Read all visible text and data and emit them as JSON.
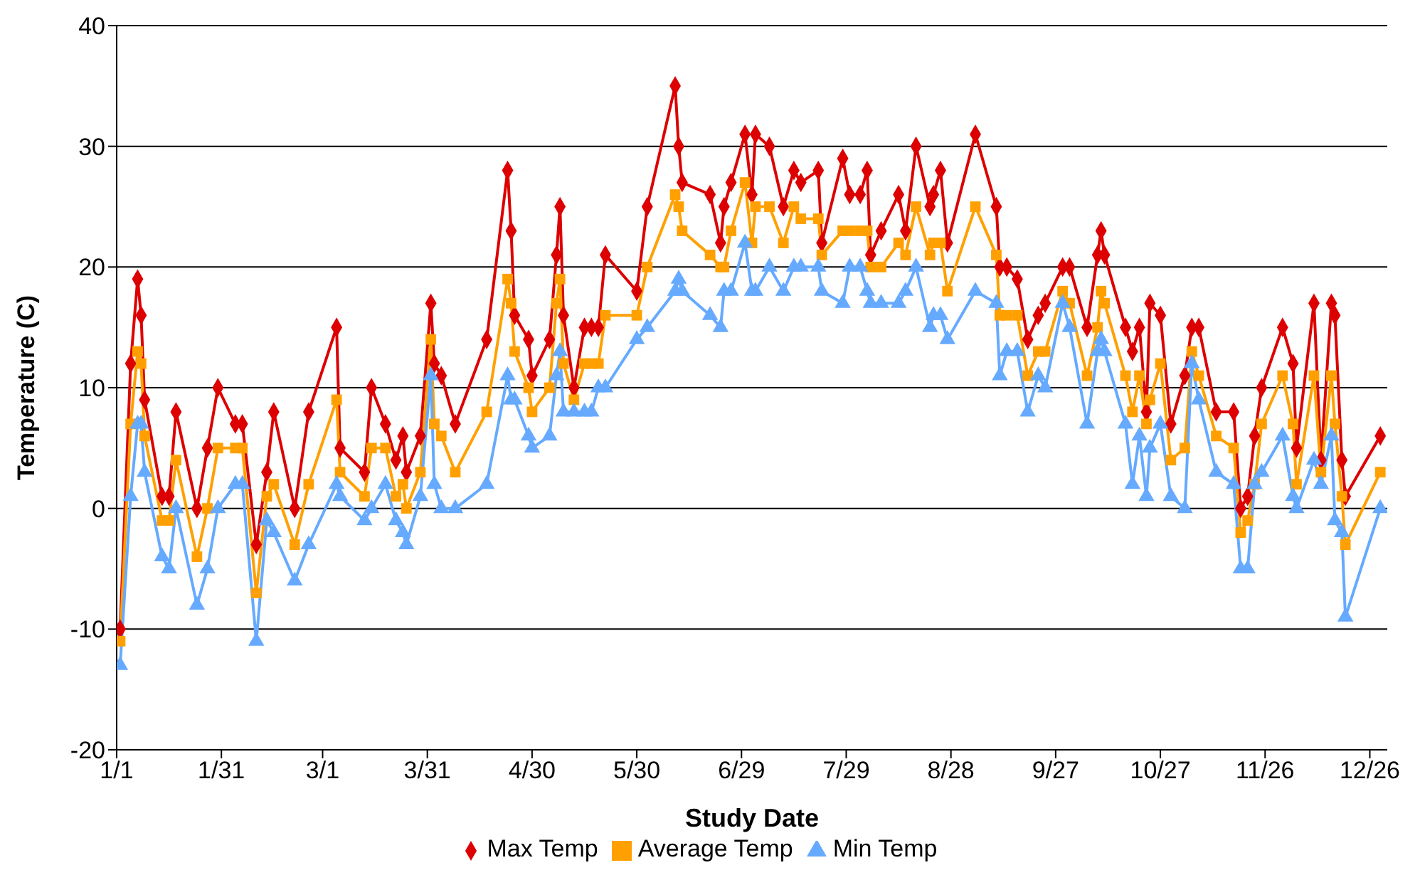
{
  "chart_data": {
    "type": "line",
    "xlabel": "Study Date",
    "ylabel": "Temperature (C)",
    "x": [
      "--01-02",
      "--01-05",
      "--01-07",
      "--01-08",
      "--01-09",
      "--01-14",
      "--01-16",
      "--01-18",
      "--01-24",
      "--01-27",
      "--01-30",
      "--02-04",
      "--02-06",
      "--02-10",
      "--02-13",
      "--02-15",
      "--02-21",
      "--02-25",
      "--03-05",
      "--03-06",
      "--03-13",
      "--03-15",
      "--03-19",
      "--03-22",
      "--03-24",
      "--03-25",
      "--03-29",
      "--04-01",
      "--04-02",
      "--04-04",
      "--04-08",
      "--04-17",
      "--04-23",
      "--04-24",
      "--04-25",
      "--04-29",
      "--04-30",
      "--05-05",
      "--05-07",
      "--05-08",
      "--05-09",
      "--05-12",
      "--05-15",
      "--05-17",
      "--05-19",
      "--05-21",
      "--05-30",
      "--06-02",
      "--06-10",
      "--06-11",
      "--06-12",
      "--06-20",
      "--06-23",
      "--06-24",
      "--06-26",
      "--06-30",
      "--07-02",
      "--07-03",
      "--07-07",
      "--07-11",
      "--07-14",
      "--07-16",
      "--07-21",
      "--07-22",
      "--07-28",
      "--07-30",
      "--08-02",
      "--08-04",
      "--08-05",
      "--08-08",
      "--08-13",
      "--08-15",
      "--08-18",
      "--08-22",
      "--08-23",
      "--08-25",
      "--08-27",
      "--09-04",
      "--09-10",
      "--09-11",
      "--09-13",
      "--09-16",
      "--09-19",
      "--09-22",
      "--09-24",
      "--09-29",
      "--10-01",
      "--10-06",
      "--10-09",
      "--10-10",
      "--10-11",
      "--10-17",
      "--10-19",
      "--10-21",
      "--10-23",
      "--10-24",
      "--10-27",
      "--10-30",
      "--11-03",
      "--11-05",
      "--11-07",
      "--11-12",
      "--11-17",
      "--11-19",
      "--11-21",
      "--11-23",
      "--11-25",
      "--12-01",
      "--12-04",
      "--12-05",
      "--12-10",
      "--12-12",
      "--12-15",
      "--12-16",
      "--12-18",
      "--12-19",
      "--12-29"
    ],
    "series": [
      {
        "name": "Max Temp",
        "color": "#dd0000",
        "marker": "diamond",
        "values": [
          -10,
          12,
          19,
          16,
          9,
          1,
          1,
          8,
          0,
          5,
          10,
          7,
          7,
          -3,
          3,
          8,
          0,
          8,
          15,
          5,
          3,
          10,
          7,
          4,
          6,
          3,
          6,
          17,
          12,
          11,
          7,
          14,
          28,
          23,
          16,
          14,
          11,
          14,
          21,
          25,
          16,
          10,
          15,
          15,
          15,
          21,
          18,
          25,
          35,
          30,
          27,
          26,
          22,
          25,
          27,
          31,
          26,
          31,
          30,
          25,
          28,
          27,
          28,
          22,
          29,
          26,
          26,
          28,
          21,
          23,
          26,
          23,
          30,
          25,
          26,
          28,
          22,
          31,
          25,
          20,
          20,
          19,
          14,
          16,
          17,
          20,
          20,
          15,
          21,
          23,
          21,
          15,
          13,
          15,
          8,
          17,
          16,
          7,
          11,
          15,
          15,
          8,
          8,
          0,
          1,
          6,
          10,
          15,
          12,
          5,
          17,
          4,
          17,
          16,
          4,
          1,
          6
        ]
      },
      {
        "name": "Average Temp",
        "color": "#ffa000",
        "marker": "square",
        "values": [
          -11,
          7,
          13,
          12,
          6,
          -1,
          -1,
          4,
          -4,
          0,
          5,
          5,
          5,
          -7,
          1,
          2,
          -3,
          2,
          9,
          3,
          1,
          5,
          5,
          1,
          2,
          0,
          3,
          14,
          7,
          6,
          3,
          8,
          19,
          17,
          13,
          10,
          8,
          10,
          17,
          19,
          12,
          9,
          12,
          12,
          12,
          16,
          16,
          20,
          26,
          25,
          23,
          21,
          20,
          20,
          23,
          27,
          22,
          25,
          25,
          22,
          25,
          24,
          24,
          21,
          23,
          23,
          23,
          23,
          20,
          20,
          22,
          21,
          25,
          21,
          22,
          22,
          18,
          25,
          21,
          16,
          16,
          16,
          11,
          13,
          13,
          18,
          17,
          11,
          15,
          18,
          17,
          11,
          8,
          11,
          7,
          9,
          12,
          4,
          5,
          13,
          11,
          6,
          5,
          -2,
          -1,
          2,
          7,
          11,
          7,
          2,
          11,
          3,
          11,
          7,
          1,
          -3,
          3
        ]
      },
      {
        "name": "Min Temp",
        "color": "#66aaff",
        "marker": "triangle",
        "values": [
          -13,
          1,
          7,
          7,
          3,
          -4,
          -5,
          0,
          -8,
          -5,
          0,
          2,
          2,
          -11,
          -1,
          -2,
          -6,
          -3,
          2,
          1,
          -1,
          0,
          2,
          -1,
          -2,
          -3,
          1,
          11,
          2,
          0,
          0,
          2,
          11,
          9,
          9,
          6,
          5,
          6,
          11,
          13,
          8,
          8,
          8,
          8,
          10,
          10,
          14,
          15,
          18,
          19,
          18,
          16,
          15,
          18,
          18,
          22,
          18,
          18,
          20,
          18,
          20,
          20,
          20,
          18,
          17,
          20,
          20,
          18,
          17,
          17,
          17,
          18,
          20,
          15,
          16,
          16,
          14,
          18,
          17,
          11,
          13,
          13,
          8,
          11,
          10,
          17,
          15,
          7,
          13,
          14,
          13,
          7,
          2,
          6,
          1,
          5,
          7,
          1,
          0,
          12,
          9,
          3,
          2,
          -5,
          -5,
          2,
          3,
          6,
          1,
          0,
          4,
          2,
          6,
          -1,
          -2,
          -9,
          0
        ]
      }
    ],
    "xlim": [
      "--01-01",
      "--12-31"
    ],
    "xticks": [
      {
        "value": "--01-01",
        "label": "1/1"
      },
      {
        "value": "--01-31",
        "label": "1/31"
      },
      {
        "value": "--03-01",
        "label": "3/1"
      },
      {
        "value": "--03-31",
        "label": "3/31"
      },
      {
        "value": "--04-30",
        "label": "4/30"
      },
      {
        "value": "--05-30",
        "label": "5/30"
      },
      {
        "value": "--06-29",
        "label": "6/29"
      },
      {
        "value": "--07-29",
        "label": "7/29"
      },
      {
        "value": "--08-28",
        "label": "8/28"
      },
      {
        "value": "--09-27",
        "label": "9/27"
      },
      {
        "value": "--10-27",
        "label": "10/27"
      },
      {
        "value": "--11-26",
        "label": "11/26"
      },
      {
        "value": "--12-26",
        "label": "12/26"
      }
    ],
    "ylim": [
      -20,
      40
    ],
    "yticks": [
      -20,
      -10,
      0,
      10,
      20,
      30,
      40
    ],
    "grid": "y",
    "legend": "bottom",
    "line_style": "solid"
  }
}
